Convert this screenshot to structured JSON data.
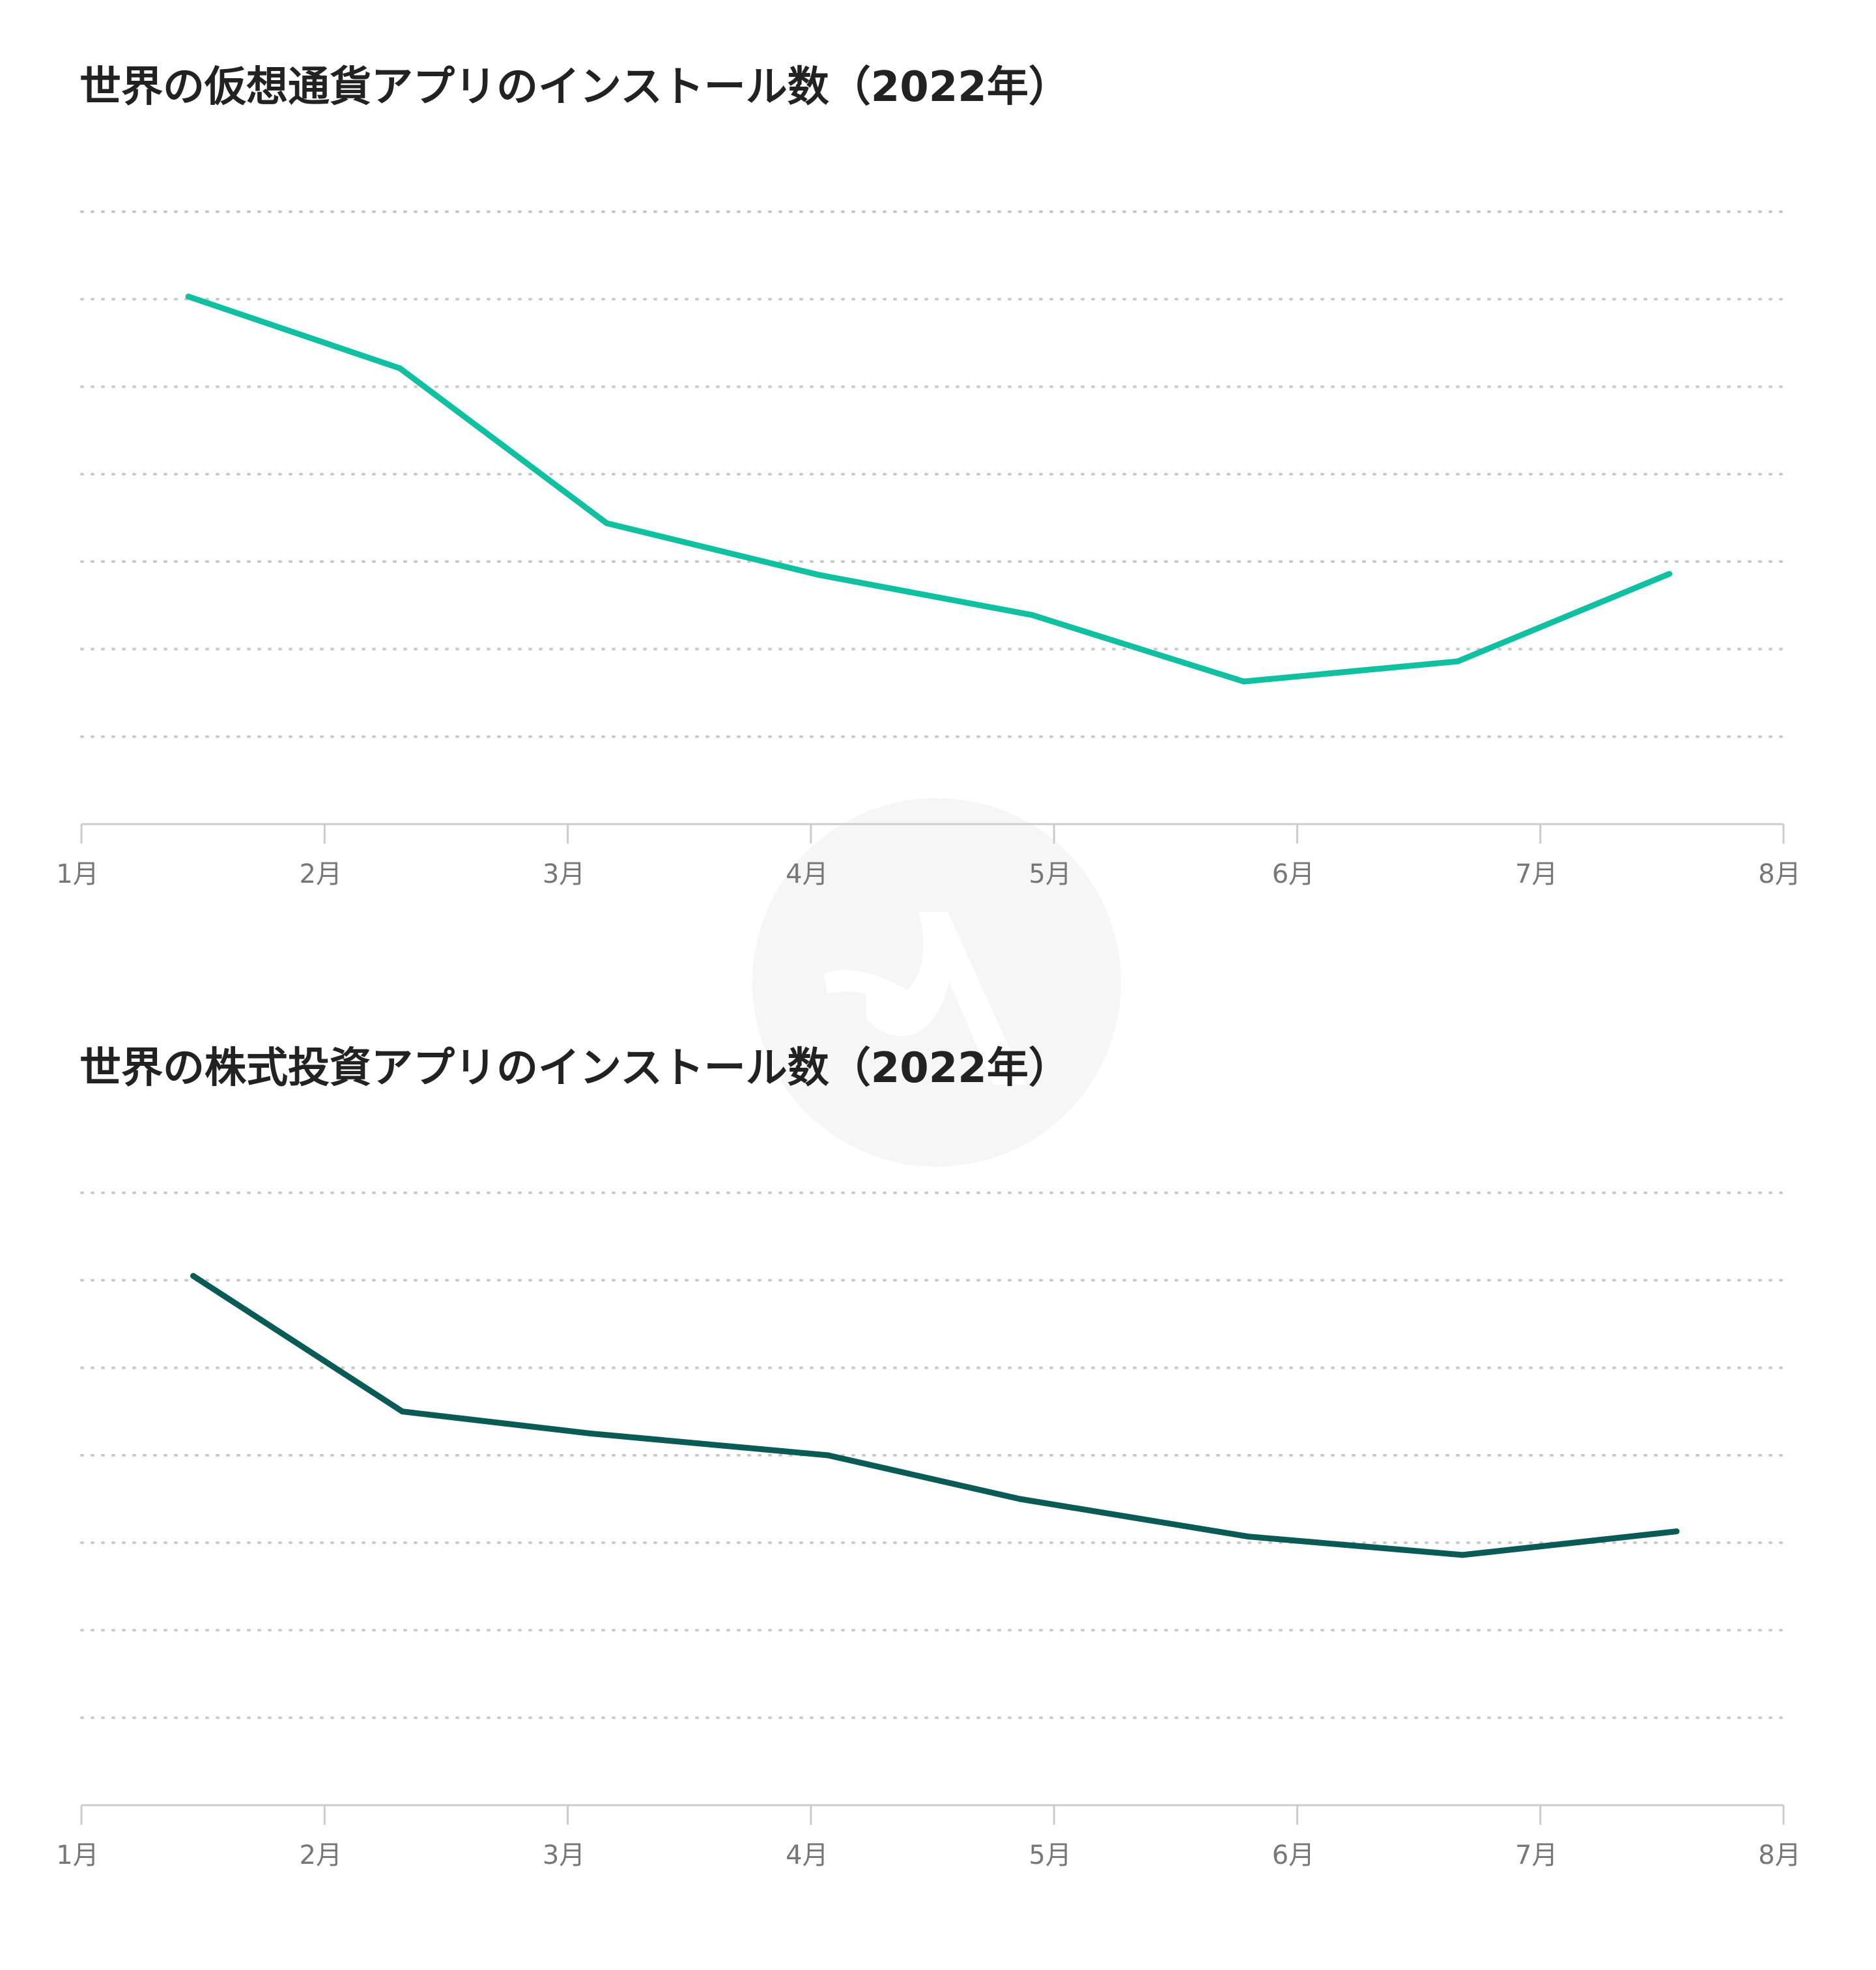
{
  "chart_data": [
    {
      "type": "line",
      "title": "世界の仮想通貨アプリのインストール数（2022年）",
      "xlabel": "",
      "ylabel": "",
      "x_ticks": [
        "1月",
        "2月",
        "3月",
        "4月",
        "5月",
        "6月",
        "7月",
        "8月"
      ],
      "x_range": [
        1,
        8
      ],
      "y_range": [
        0,
        7
      ],
      "y_ticks_labeled": false,
      "grid": "horizontal dotted",
      "series": [
        {
          "color": "#10c0a0",
          "points": [
            {
              "x": 1.44,
              "y": 6.03
            },
            {
              "x": 2.31,
              "y": 5.21
            },
            {
              "x": 3.16,
              "y": 3.44
            },
            {
              "x": 4.03,
              "y": 2.85
            },
            {
              "x": 4.91,
              "y": 2.39
            },
            {
              "x": 5.78,
              "y": 1.63
            },
            {
              "x": 6.66,
              "y": 1.86
            },
            {
              "x": 7.53,
              "y": 2.86
            }
          ]
        }
      ]
    },
    {
      "type": "line",
      "title": "世界の株式投資アプリのインストール数（2022年）",
      "xlabel": "",
      "ylabel": "",
      "x_ticks": [
        "1月",
        "2月",
        "3月",
        "4月",
        "5月",
        "6月",
        "7月",
        "8月"
      ],
      "x_range": [
        1,
        8
      ],
      "y_range": [
        0,
        7
      ],
      "y_ticks_labeled": false,
      "grid": "horizontal dotted",
      "series": [
        {
          "color": "#0a5a55",
          "points": [
            {
              "x": 1.46,
              "y": 6.05
            },
            {
              "x": 2.32,
              "y": 4.5
            },
            {
              "x": 3.09,
              "y": 4.25
            },
            {
              "x": 4.07,
              "y": 4.0
            },
            {
              "x": 4.86,
              "y": 3.5
            },
            {
              "x": 5.8,
              "y": 3.07
            },
            {
              "x": 6.68,
              "y": 2.86
            },
            {
              "x": 7.56,
              "y": 3.13
            }
          ]
        }
      ]
    }
  ]
}
